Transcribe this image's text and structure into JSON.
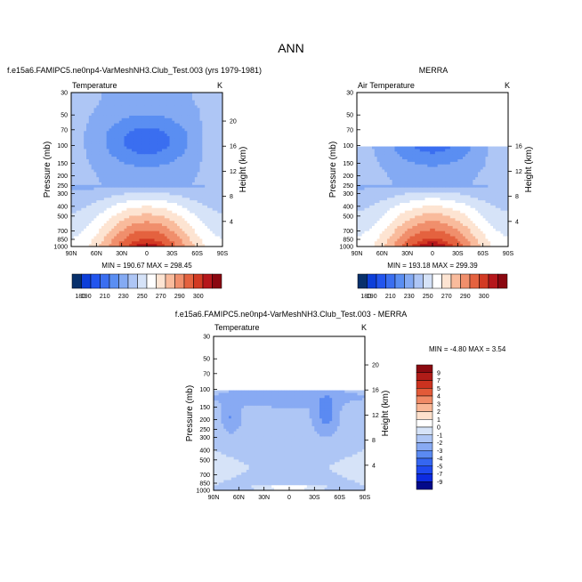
{
  "figure": {
    "title": "ANN"
  },
  "panels": [
    {
      "case": "f.e15a6.FAMIPC5.ne0np4-VarMeshNH3.Club_Test.003 (yrs 1979-1981)",
      "variable": "Temperature",
      "units": "K",
      "stats": "MIN = 190.67  MAX = 298.45"
    },
    {
      "case": "MERRA",
      "variable": "Air Temperature",
      "units": "K",
      "stats": "MIN = 193.18  MAX = 299.39"
    },
    {
      "case": "f.e15a6.FAMIPC5.ne0np4-VarMeshNH3.Club_Test.003 - MERRA",
      "variable": "Temperature",
      "units": "K",
      "stats": "MIN = -4.80  MAX =  3.54"
    }
  ],
  "colors": {
    "abs_scale": [
      "#08306b",
      "#0d3fd9",
      "#2255ee",
      "#3a6ef0",
      "#5a8ef2",
      "#84aaf3",
      "#aec6f5",
      "#d6e3f8",
      "#ffffff",
      "#fde4d2",
      "#f9bb9c",
      "#f08f6c",
      "#e4623f",
      "#d23a23",
      "#b5171b",
      "#8a0710"
    ],
    "diff_scale": [
      "#030a8a",
      "#0d2be0",
      "#1f49ef",
      "#3566f1",
      "#5b8af2",
      "#88aaf3",
      "#aec6f5",
      "#d6e3f8",
      "#ffffff",
      "#fde0cc",
      "#f9b796",
      "#f08a66",
      "#e25a38",
      "#cc321f",
      "#b01c18",
      "#8b0a10"
    ]
  },
  "chart_data": [
    {
      "type": "heatmap",
      "title": "Temperature",
      "xlabel": "",
      "ylabel": "Pressure (mb)",
      "y2label": "Height (km)",
      "x_ticks": [
        "90N",
        "60N",
        "30N",
        "0",
        "30S",
        "60S",
        "90S"
      ],
      "y_ticks": [
        "30",
        "50",
        "70",
        "100",
        "150",
        "200",
        "250",
        "300",
        "400",
        "500",
        "700",
        "850",
        "1000"
      ],
      "y2_ticks": [
        "4",
        "8",
        "12",
        "16",
        "20"
      ],
      "colorbar_labels": [
        "180",
        "190",
        "210",
        "230",
        "250",
        "270",
        "290",
        "300"
      ],
      "levels": [
        175,
        180,
        185,
        190,
        200,
        210,
        220,
        230,
        240,
        250,
        260,
        270,
        280,
        290,
        295,
        300
      ],
      "ylim": [
        1000,
        30
      ],
      "xlim": [
        "90N",
        "90S"
      ],
      "grid": false,
      "min": 190.67,
      "max": 298.45
    },
    {
      "type": "heatmap",
      "title": "Air Temperature",
      "xlabel": "",
      "ylabel": "Pressure (mb)",
      "y2label": "Height (km)",
      "x_ticks": [
        "90N",
        "60N",
        "30N",
        "0",
        "30S",
        "60S",
        "90S"
      ],
      "y_ticks": [
        "30",
        "50",
        "70",
        "100",
        "150",
        "200",
        "250",
        "300",
        "400",
        "500",
        "700",
        "850",
        "1000"
      ],
      "y2_ticks": [
        "4",
        "8",
        "12",
        "16"
      ],
      "colorbar_labels": [
        "180",
        "190",
        "210",
        "230",
        "250",
        "270",
        "290",
        "300"
      ],
      "levels": [
        175,
        180,
        185,
        190,
        200,
        210,
        220,
        230,
        240,
        250,
        260,
        270,
        280,
        290,
        295,
        300
      ],
      "ylim": [
        1000,
        30
      ],
      "xlim": [
        "90N",
        "90S"
      ],
      "data_top_pressure": 100,
      "grid": false,
      "min": 193.18,
      "max": 299.39
    },
    {
      "type": "heatmap",
      "title": "Temperature",
      "xlabel": "",
      "ylabel": "Pressure (mb)",
      "y2label": "Height (km)",
      "x_ticks": [
        "90N",
        "60N",
        "30N",
        "0",
        "30S",
        "60S",
        "90S"
      ],
      "y_ticks": [
        "30",
        "50",
        "70",
        "100",
        "150",
        "200",
        "250",
        "300",
        "400",
        "500",
        "700",
        "850",
        "1000"
      ],
      "y2_ticks": [
        "4",
        "8",
        "12",
        "16",
        "20"
      ],
      "colorbar_labels": [
        "9",
        "7",
        "5",
        "4",
        "3",
        "2",
        "1",
        "0",
        "-1",
        "-2",
        "-3",
        "-4",
        "-5",
        "-7",
        "-9"
      ],
      "levels": [
        -10,
        -9,
        -7,
        -5,
        -4,
        -3,
        -2,
        -1,
        0,
        1,
        2,
        3,
        4,
        5,
        7,
        9,
        10
      ],
      "ylim": [
        1000,
        30
      ],
      "xlim": [
        "90N",
        "90S"
      ],
      "data_top_pressure": 100,
      "grid": false,
      "min": -4.8,
      "max": 3.54
    }
  ]
}
